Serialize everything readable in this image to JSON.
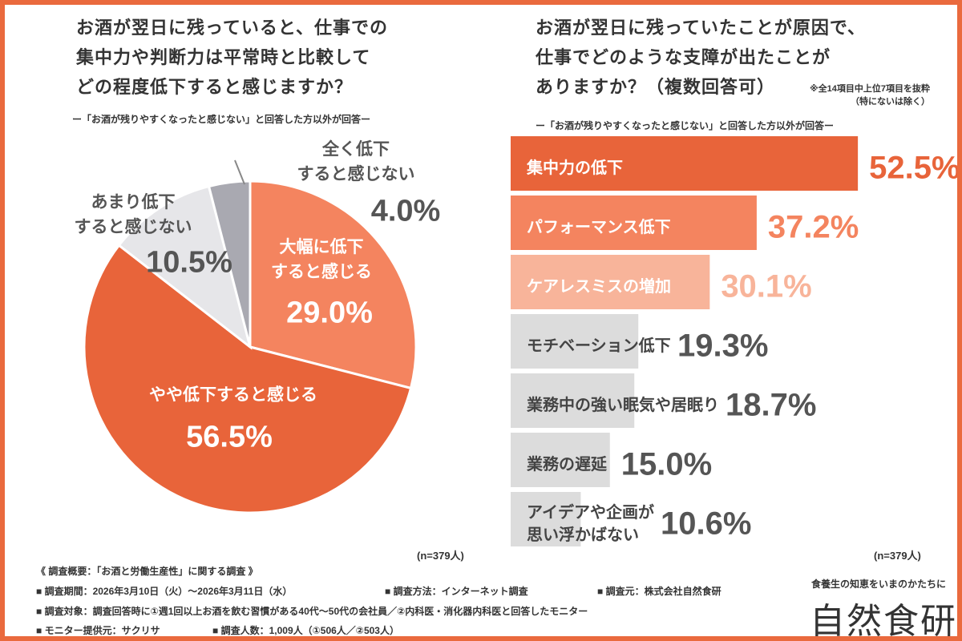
{
  "chart_data": [
    {
      "type": "pie",
      "title": "お酒が翌日に残っていると、仕事での\n集中力や判断力は平常時と比較して\nどの程度低下すると感じますか？",
      "subtitle": "ー「お酒が残りやすくなったと感じない」と回答した方以外が回答ー",
      "categories": [
        "大幅に低下\nすると感じる",
        "やや低下すると感じる",
        "あまり低下\nすると感じない",
        "全く低下\nすると感じない"
      ],
      "values": [
        29.0,
        56.5,
        10.5,
        4.0
      ],
      "value_labels": [
        "29.0%",
        "56.5%",
        "10.5%",
        "4.0%"
      ],
      "colors": [
        "#f4845f",
        "#e8643a",
        "#e6e6e9",
        "#a9a9b1"
      ],
      "note": "(n=379人)"
    },
    {
      "type": "hbar",
      "title": "お酒が翌日に残っていたことが原因で、\n仕事でどのような支障が出たことが\nありますか？（複数回答可）",
      "annotation": "※全14項目中上位7項目を抜粋\n（特にないは除く）",
      "subtitle": "ー「お酒が残りやすくなったと感じない」と回答した方以外が回答ー",
      "categories": [
        "集中力の低下",
        "パフォーマンス低下",
        "ケアレスミスの増加",
        "モチベーション低下",
        "業務中の強い眠気や居眠り",
        "業務の遅延",
        "アイデアや企画が\n思い浮かばない"
      ],
      "values": [
        52.5,
        37.2,
        30.1,
        19.3,
        18.7,
        15.0,
        10.6
      ],
      "value_labels": [
        "52.5%",
        "37.2%",
        "30.1%",
        "19.3%",
        "18.7%",
        "15.0%",
        "10.6%"
      ],
      "colors": [
        "#e8643a",
        "#f4845f",
        "#f8b49a",
        "#dcdcdc",
        "#dcdcdc",
        "#dcdcdc",
        "#dcdcdc"
      ],
      "note": "(n=379人)"
    }
  ],
  "survey": {
    "heading": "《 調査概要：「お酒と労働生産性」に関する調査 》",
    "rows": [
      [
        "■ 調査期間：2026年3月10日（火）〜2026年3月11日（水）",
        "■ 調査方法：インターネット調査",
        "■ 調査元：株式会社自然食研"
      ],
      [
        "■ 調査対象：調査回答時に①週1回以上お酒を飲む習慣がある40代〜50代の会社員／②内科医・消化器内科医と回答したモニター"
      ],
      [
        "■ モニター提供元：サクリサ",
        "■ 調査人数：1,009人（①506人／②503人）"
      ]
    ]
  },
  "brand": {
    "tagline": "食養生の知恵をいまのかたちに",
    "name": "自然食研"
  }
}
